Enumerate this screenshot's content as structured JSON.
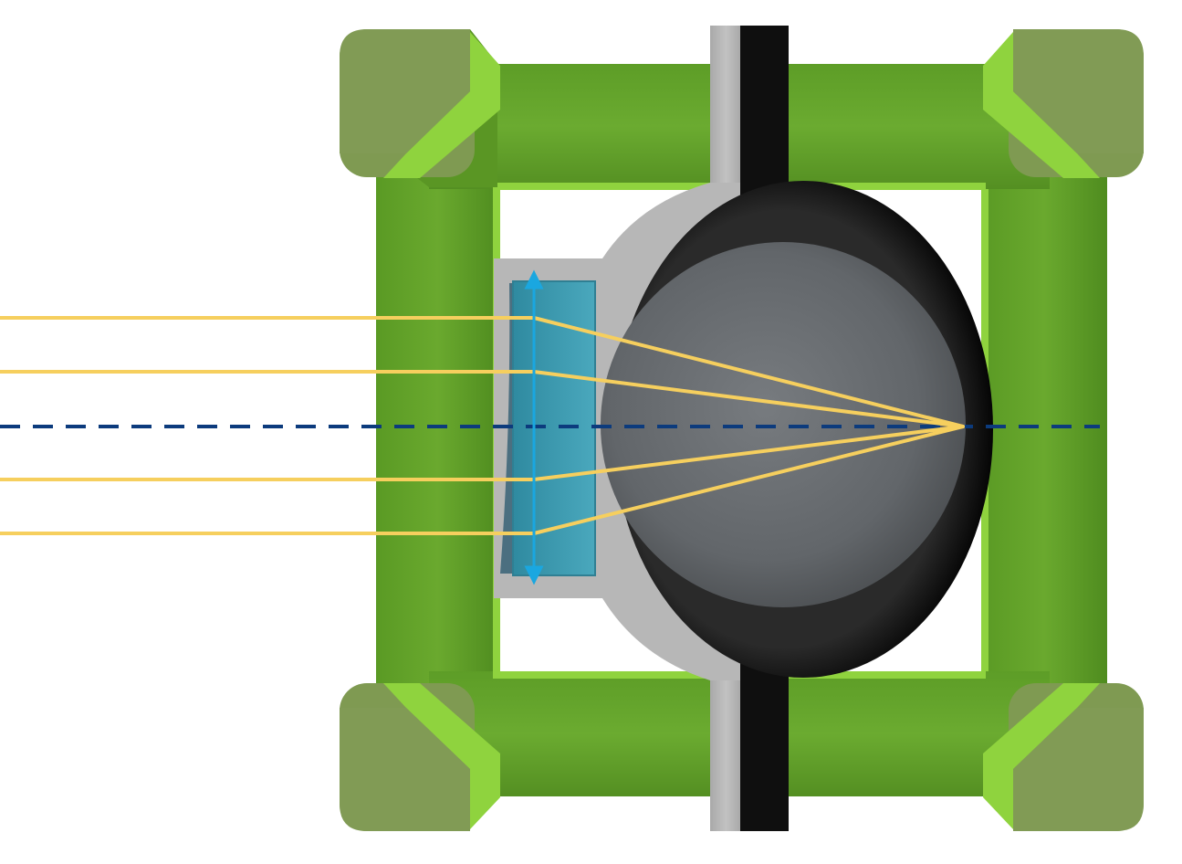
{
  "diagram": {
    "kind": "optical-cross-section",
    "components": [
      "green-cage-frame",
      "corner-posts",
      "gray-mount-plate",
      "black-rod",
      "gray-sphere",
      "blue-lens-element",
      "incoming-light-rays",
      "optical-axis",
      "aperture-arrow"
    ],
    "ray_count": 4,
    "colors": {
      "frame_green": "#64a32c",
      "frame_green_light": "#8fd33e",
      "corner_post": "#7f9a52",
      "mount_gray": "#b9b9b9",
      "rod_black": "#0f0f0f",
      "sphere_gray": "#6a6e72",
      "lens_blue": "#3d9db2",
      "ray_yellow": "#f6cf5e",
      "axis_navy": "#0c3b7d",
      "arrow_cyan": "#1aa7e0"
    }
  }
}
